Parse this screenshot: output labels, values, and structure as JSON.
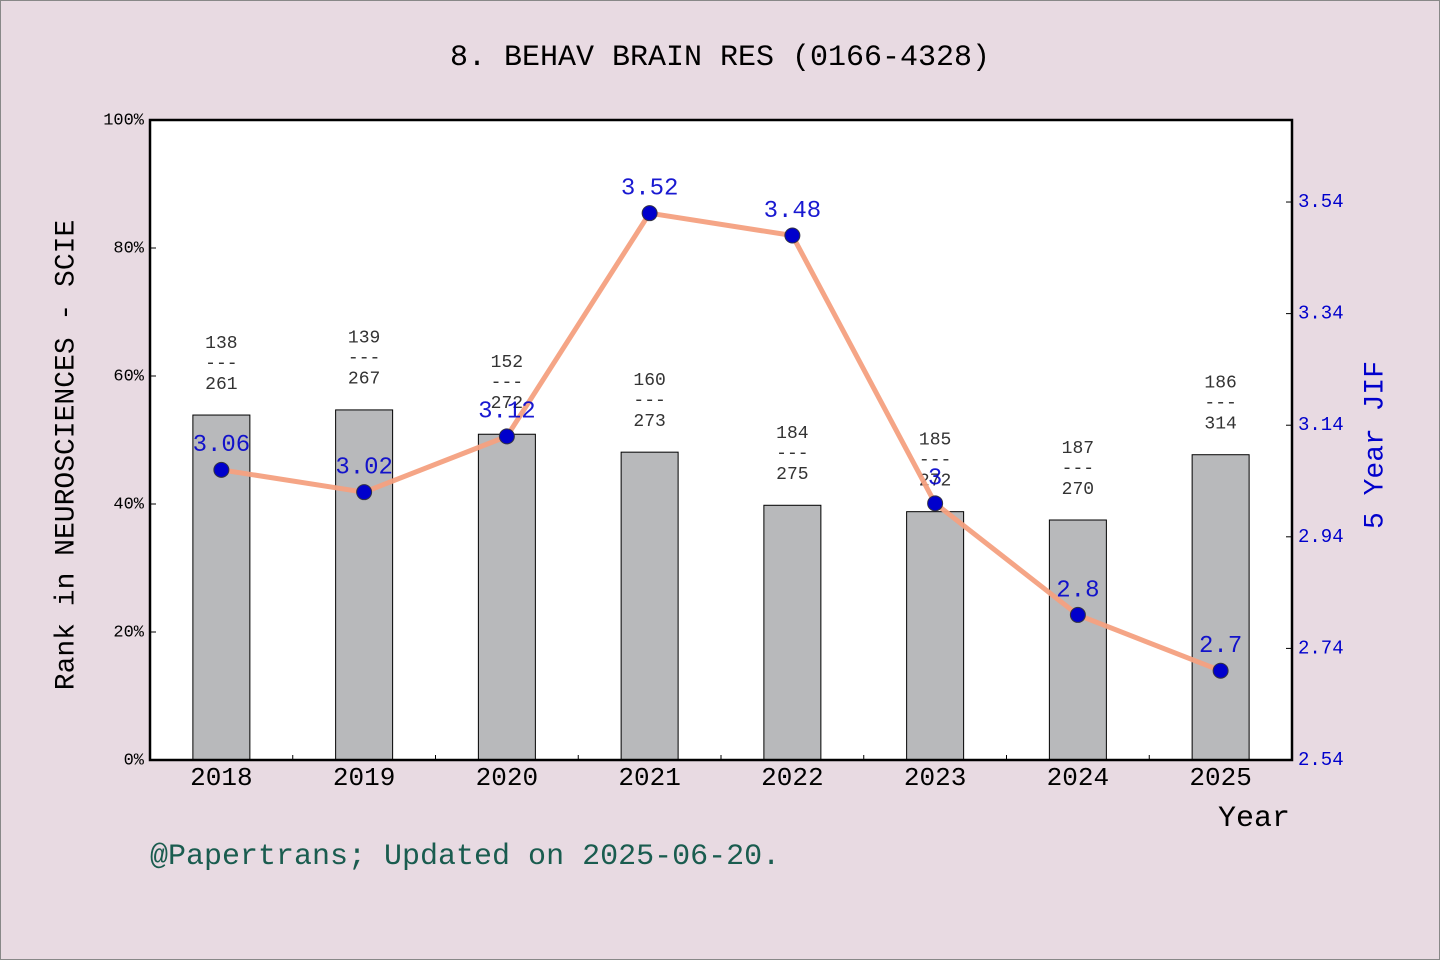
{
  "chart_data": {
    "type": "combo",
    "title": "8. BEHAV BRAIN RES (0166-4328)",
    "x_label": "Year",
    "y_label": "Rank in NEUROSCIENCES - SCIE",
    "y2_label": "5 Year JIF",
    "footer": "@Papertrans; Updated on 2025-06-20.",
    "categories": [
      "2018",
      "2019",
      "2020",
      "2021",
      "2022",
      "2023",
      "2024",
      "2025"
    ],
    "ylim": [
      0,
      100
    ],
    "yticks": [
      {
        "value": 0,
        "label": "0%"
      },
      {
        "value": 20,
        "label": "20%"
      },
      {
        "value": 40,
        "label": "40%"
      },
      {
        "value": 60,
        "label": "60%"
      },
      {
        "value": 80,
        "label": "80%"
      },
      {
        "value": 100,
        "label": "100%"
      }
    ],
    "y2lim": [
      2.54,
      3.687
    ],
    "y2ticks": [
      2.54,
      2.74,
      2.94,
      3.14,
      3.34,
      3.54
    ],
    "series": [
      {
        "type": "bar",
        "color": "#b8b9bb",
        "values": [
          53.9,
          54.7,
          50.9,
          48.1,
          39.8,
          38.8,
          37.5,
          47.7
        ]
      },
      {
        "type": "line",
        "axis": "y2",
        "color": "#f4a07f",
        "marker_color": "#0000cc",
        "values": [
          3.06,
          3.02,
          3.12,
          3.52,
          3.48,
          3,
          2.8,
          2.7
        ]
      }
    ],
    "rank_labels": {
      "separator": "---",
      "ranks": [
        "138",
        "139",
        "152",
        "160",
        "184",
        "185",
        "187",
        "186"
      ],
      "totals": [
        "261",
        "267",
        "272",
        "273",
        "275",
        "272",
        "270",
        "314"
      ]
    }
  }
}
